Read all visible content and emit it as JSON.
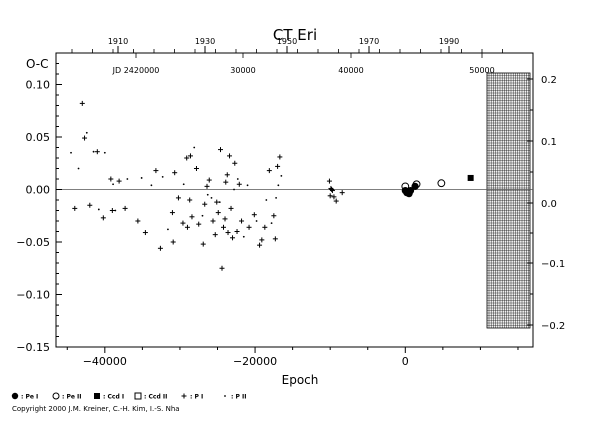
{
  "chart_data": {
    "type": "scatter",
    "title": "CT Eri",
    "ylabel": "O-C",
    "xlabel": "Epoch",
    "xlim": [
      -46500,
      17000
    ],
    "ylim": [
      -0.15,
      0.13
    ],
    "x_ticks": [
      -40000,
      -20000,
      0
    ],
    "x_tick_labels": [
      "−40000",
      "−20000",
      "0"
    ],
    "y_ticks": [
      -0.15,
      -0.1,
      -0.05,
      0.0,
      0.05,
      0.1
    ],
    "y_tick_labels": [
      "−0.15",
      "−0.10",
      "−0.05",
      "0.00",
      "0.05",
      "0.10"
    ],
    "top_year_labels": [
      "1910",
      "1930",
      "1950",
      "1970",
      "1990"
    ],
    "top_jd_labels": [
      "JD 2420000",
      "30000",
      "40000",
      "50000"
    ],
    "right_phase_labels": [
      "0.2",
      "0.1",
      "0.0",
      "−0.1",
      "−0.2"
    ],
    "grid": false,
    "zero_line": true,
    "legend": {
      "placement": "bottom",
      "entries": [
        "Pe I",
        "Pe II",
        "Ccd I",
        "Ccd II",
        "P I",
        "P II"
      ]
    },
    "series": [
      {
        "name": "P I",
        "marker": "plus",
        "points": [
          [
            -44000,
            -0.018
          ],
          [
            -43000,
            0.082
          ],
          [
            -42700,
            0.049
          ],
          [
            -42000,
            -0.015
          ],
          [
            -41000,
            0.036
          ],
          [
            -40200,
            -0.027
          ],
          [
            -39200,
            0.01
          ],
          [
            -39000,
            -0.02
          ],
          [
            -38100,
            0.008
          ],
          [
            -37300,
            -0.018
          ],
          [
            -35600,
            -0.03
          ],
          [
            -34600,
            -0.041
          ],
          [
            -33200,
            0.018
          ],
          [
            -32600,
            -0.056
          ],
          [
            -31000,
            -0.022
          ],
          [
            -30900,
            -0.05
          ],
          [
            -30700,
            0.016
          ],
          [
            -30200,
            -0.008
          ],
          [
            -29600,
            -0.032
          ],
          [
            -29100,
            0.03
          ],
          [
            -29000,
            -0.036
          ],
          [
            -28700,
            -0.01
          ],
          [
            -28600,
            0.032
          ],
          [
            -28400,
            -0.026
          ],
          [
            -27800,
            0.02
          ],
          [
            -27500,
            -0.033
          ],
          [
            -26900,
            -0.052
          ],
          [
            -26700,
            -0.014
          ],
          [
            -26400,
            0.003
          ],
          [
            -26100,
            0.009
          ],
          [
            -25600,
            -0.03
          ],
          [
            -25300,
            -0.043
          ],
          [
            -25100,
            -0.012
          ],
          [
            -24900,
            -0.022
          ],
          [
            -24600,
            0.038
          ],
          [
            -24400,
            -0.075
          ],
          [
            -24200,
            -0.036
          ],
          [
            -24000,
            -0.028
          ],
          [
            -23900,
            0.007
          ],
          [
            -23700,
            0.014
          ],
          [
            -23600,
            -0.041
          ],
          [
            -23400,
            0.032
          ],
          [
            -23200,
            -0.018
          ],
          [
            -23000,
            -0.046
          ],
          [
            -22700,
            0.025
          ],
          [
            -22400,
            -0.04
          ],
          [
            -22100,
            0.005
          ],
          [
            -21800,
            -0.03
          ],
          [
            -20800,
            -0.036
          ],
          [
            -20100,
            -0.024
          ],
          [
            -19400,
            -0.053
          ],
          [
            -19100,
            -0.048
          ],
          [
            -18700,
            -0.036
          ],
          [
            -18100,
            0.018
          ],
          [
            -17500,
            -0.025
          ],
          [
            -17300,
            -0.047
          ],
          [
            -17000,
            0.022
          ],
          [
            -16700,
            0.031
          ],
          [
            -10100,
            0.008
          ],
          [
            -10000,
            -0.006
          ],
          [
            -9900,
            0.001
          ],
          [
            -9800,
            0.0
          ],
          [
            -9700,
            -0.001
          ],
          [
            -9500,
            -0.007
          ],
          [
            -9200,
            -0.011
          ],
          [
            -8400,
            -0.003
          ]
        ]
      },
      {
        "name": "P II",
        "marker": "dot",
        "points": [
          [
            -44500,
            0.035
          ],
          [
            -43500,
            0.02
          ],
          [
            -42400,
            0.054
          ],
          [
            -41500,
            0.036
          ],
          [
            -40800,
            -0.019
          ],
          [
            -40000,
            0.035
          ],
          [
            -38900,
            0.005
          ],
          [
            -38600,
            -0.02
          ],
          [
            -37000,
            0.01
          ],
          [
            -35100,
            0.011
          ],
          [
            -33800,
            0.004
          ],
          [
            -32300,
            0.012
          ],
          [
            -31600,
            -0.038
          ],
          [
            -29500,
            0.005
          ],
          [
            -28100,
            0.04
          ],
          [
            -27000,
            -0.025
          ],
          [
            -26300,
            -0.005
          ],
          [
            -25800,
            -0.008
          ],
          [
            -24700,
            -0.012
          ],
          [
            -22800,
            0.0
          ],
          [
            -22300,
            0.01
          ],
          [
            -21500,
            -0.045
          ],
          [
            -21000,
            0.004
          ],
          [
            -19800,
            -0.03
          ],
          [
            -18500,
            -0.01
          ],
          [
            -17800,
            -0.032
          ],
          [
            -17200,
            -0.008
          ],
          [
            -16900,
            0.004
          ],
          [
            -16500,
            0.013
          ]
        ]
      },
      {
        "name": "Pe I",
        "marker": "filled-circle",
        "points": [
          [
            0,
            -0.001
          ],
          [
            200,
            -0.003
          ],
          [
            300,
            -0.002
          ],
          [
            400,
            -0.003
          ],
          [
            500,
            -0.004
          ],
          [
            700,
            -0.001
          ],
          [
            1300,
            0.003
          ]
        ]
      },
      {
        "name": "Pe II",
        "marker": "open-circle",
        "points": [
          [
            0,
            0.003
          ],
          [
            1500,
            0.005
          ],
          [
            4800,
            0.006
          ]
        ]
      },
      {
        "name": "Ccd I",
        "marker": "filled-square",
        "points": [
          [
            8700,
            0.011
          ]
        ]
      }
    ]
  },
  "copyright": "Copyright 2000 J.M. Kreiner, C.-H. Kim, I.-S. Nha",
  "colors": {
    "ink": "#000000",
    "background": "#ffffff"
  }
}
